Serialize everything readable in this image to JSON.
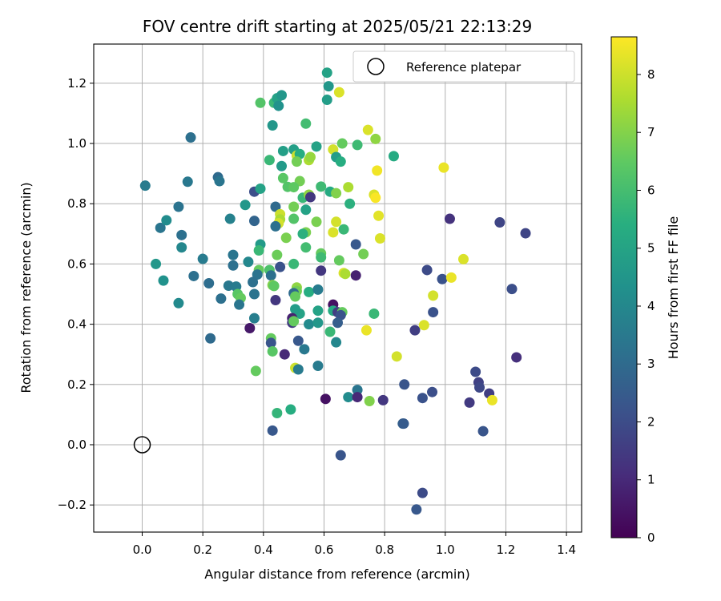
{
  "chart_data": {
    "type": "scatter",
    "title": "FOV centre drift starting at 2025/05/21 22:13:29",
    "xlabel": "Angular distance from reference (arcmin)",
    "ylabel": "Rotation from reference (arcmin)",
    "xlim": [
      -0.16,
      1.45
    ],
    "ylim": [
      -0.29,
      1.33
    ],
    "xticks": [
      0.0,
      0.2,
      0.4,
      0.6,
      0.8,
      1.0,
      1.2,
      1.4
    ],
    "yticks": [
      -0.2,
      0.0,
      0.2,
      0.4,
      0.6,
      0.8,
      1.0,
      1.2
    ],
    "grid": true,
    "legend": {
      "label": "Reference platepar",
      "placement": "top-right"
    },
    "reference_point": {
      "x": 0.0,
      "y": 0.0
    },
    "colorbar": {
      "label": "Hours from first FF file",
      "range": [
        0,
        8.65
      ],
      "ticks": [
        0,
        1,
        2,
        3,
        4,
        5,
        6,
        7,
        8
      ],
      "colormap": "viridis"
    },
    "points": [
      {
        "x": 0.01,
        "y": 0.86,
        "c": 3.6
      },
      {
        "x": 0.16,
        "y": 1.02,
        "c": 3.2
      },
      {
        "x": 0.06,
        "y": 0.72,
        "c": 3.4
      },
      {
        "x": 0.08,
        "y": 0.745,
        "c": 4.2
      },
      {
        "x": 0.12,
        "y": 0.79,
        "c": 3.3
      },
      {
        "x": 0.15,
        "y": 0.873,
        "c": 3.5
      },
      {
        "x": 0.25,
        "y": 0.888,
        "c": 3.0
      },
      {
        "x": 0.255,
        "y": 0.875,
        "c": 3.4
      },
      {
        "x": 0.13,
        "y": 0.696,
        "c": 3.2
      },
      {
        "x": 0.13,
        "y": 0.655,
        "c": 4.0
      },
      {
        "x": 0.045,
        "y": 0.6,
        "c": 4.6
      },
      {
        "x": 0.07,
        "y": 0.545,
        "c": 4.4
      },
      {
        "x": 0.2,
        "y": 0.617,
        "c": 3.6
      },
      {
        "x": 0.17,
        "y": 0.56,
        "c": 3.2
      },
      {
        "x": 0.12,
        "y": 0.47,
        "c": 4.1
      },
      {
        "x": 0.22,
        "y": 0.536,
        "c": 3.1
      },
      {
        "x": 0.26,
        "y": 0.485,
        "c": 3.2
      },
      {
        "x": 0.225,
        "y": 0.353,
        "c": 3.0
      },
      {
        "x": 0.29,
        "y": 0.75,
        "c": 3.8
      },
      {
        "x": 0.34,
        "y": 0.796,
        "c": 4.6
      },
      {
        "x": 0.3,
        "y": 0.63,
        "c": 3.4
      },
      {
        "x": 0.3,
        "y": 0.595,
        "c": 3.2
      },
      {
        "x": 0.35,
        "y": 0.607,
        "c": 4.0
      },
      {
        "x": 0.285,
        "y": 0.528,
        "c": 3.5
      },
      {
        "x": 0.31,
        "y": 0.525,
        "c": 3.6
      },
      {
        "x": 0.315,
        "y": 0.5,
        "c": 6.4
      },
      {
        "x": 0.325,
        "y": 0.487,
        "c": 6.6
      },
      {
        "x": 0.32,
        "y": 0.465,
        "c": 3.4
      },
      {
        "x": 0.37,
        "y": 0.84,
        "c": 2.1
      },
      {
        "x": 0.37,
        "y": 0.743,
        "c": 2.8
      },
      {
        "x": 0.39,
        "y": 0.85,
        "c": 5.0
      },
      {
        "x": 0.39,
        "y": 0.665,
        "c": 4.7
      },
      {
        "x": 0.385,
        "y": 0.645,
        "c": 5.8
      },
      {
        "x": 0.385,
        "y": 0.58,
        "c": 6.6
      },
      {
        "x": 0.38,
        "y": 0.565,
        "c": 3.3
      },
      {
        "x": 0.365,
        "y": 0.54,
        "c": 3.2
      },
      {
        "x": 0.37,
        "y": 0.5,
        "c": 3.3
      },
      {
        "x": 0.37,
        "y": 0.42,
        "c": 3.7
      },
      {
        "x": 0.355,
        "y": 0.387,
        "c": 0.6
      },
      {
        "x": 0.375,
        "y": 0.245,
        "c": 6.6
      },
      {
        "x": 0.39,
        "y": 1.135,
        "c": 6.3
      },
      {
        "x": 0.435,
        "y": 1.135,
        "c": 5.8
      },
      {
        "x": 0.445,
        "y": 1.15,
        "c": 5.0
      },
      {
        "x": 0.46,
        "y": 1.16,
        "c": 4.6
      },
      {
        "x": 0.45,
        "y": 1.125,
        "c": 4.4
      },
      {
        "x": 0.43,
        "y": 1.06,
        "c": 4.6
      },
      {
        "x": 0.42,
        "y": 0.945,
        "c": 5.8
      },
      {
        "x": 0.465,
        "y": 0.975,
        "c": 4.9
      },
      {
        "x": 0.46,
        "y": 0.925,
        "c": 4.7
      },
      {
        "x": 0.465,
        "y": 0.885,
        "c": 6.4
      },
      {
        "x": 0.48,
        "y": 0.856,
        "c": 6.3
      },
      {
        "x": 0.44,
        "y": 0.79,
        "c": 3.0
      },
      {
        "x": 0.455,
        "y": 0.765,
        "c": 8.0
      },
      {
        "x": 0.455,
        "y": 0.748,
        "c": 7.6
      },
      {
        "x": 0.45,
        "y": 0.735,
        "c": 8.1
      },
      {
        "x": 0.44,
        "y": 0.725,
        "c": 3.2
      },
      {
        "x": 0.475,
        "y": 0.687,
        "c": 6.9
      },
      {
        "x": 0.445,
        "y": 0.63,
        "c": 6.7
      },
      {
        "x": 0.455,
        "y": 0.59,
        "c": 2.2
      },
      {
        "x": 0.42,
        "y": 0.58,
        "c": 6.2
      },
      {
        "x": 0.425,
        "y": 0.562,
        "c": 3.2
      },
      {
        "x": 0.43,
        "y": 0.53,
        "c": 7.0
      },
      {
        "x": 0.435,
        "y": 0.527,
        "c": 6.5
      },
      {
        "x": 0.44,
        "y": 0.48,
        "c": 1.4
      },
      {
        "x": 0.425,
        "y": 0.353,
        "c": 6.6
      },
      {
        "x": 0.425,
        "y": 0.338,
        "c": 2.3
      },
      {
        "x": 0.43,
        "y": 0.31,
        "c": 6.4
      },
      {
        "x": 0.47,
        "y": 0.3,
        "c": 1.0
      },
      {
        "x": 0.445,
        "y": 0.105,
        "c": 5.7
      },
      {
        "x": 0.43,
        "y": 0.047,
        "c": 2.4
      },
      {
        "x": 0.49,
        "y": 0.117,
        "c": 5.4
      },
      {
        "x": 0.5,
        "y": 0.98,
        "c": 4.9
      },
      {
        "x": 0.51,
        "y": 0.96,
        "c": 8.0
      },
      {
        "x": 0.52,
        "y": 0.965,
        "c": 5.4
      },
      {
        "x": 0.51,
        "y": 0.94,
        "c": 6.8
      },
      {
        "x": 0.55,
        "y": 0.945,
        "c": 7.6
      },
      {
        "x": 0.555,
        "y": 0.955,
        "c": 7.3
      },
      {
        "x": 0.54,
        "y": 1.066,
        "c": 6.0
      },
      {
        "x": 0.575,
        "y": 0.99,
        "c": 5.0
      },
      {
        "x": 0.52,
        "y": 0.875,
        "c": 6.8
      },
      {
        "x": 0.5,
        "y": 0.855,
        "c": 6.5
      },
      {
        "x": 0.53,
        "y": 0.82,
        "c": 5.8
      },
      {
        "x": 0.55,
        "y": 0.83,
        "c": 7.2
      },
      {
        "x": 0.555,
        "y": 0.822,
        "c": 1.4
      },
      {
        "x": 0.59,
        "y": 0.857,
        "c": 5.9
      },
      {
        "x": 0.61,
        "y": 1.235,
        "c": 5.0
      },
      {
        "x": 0.615,
        "y": 1.19,
        "c": 4.6
      },
      {
        "x": 0.61,
        "y": 1.145,
        "c": 4.8
      },
      {
        "x": 0.65,
        "y": 1.17,
        "c": 8.2
      },
      {
        "x": 0.5,
        "y": 0.79,
        "c": 6.8
      },
      {
        "x": 0.5,
        "y": 0.75,
        "c": 6.3
      },
      {
        "x": 0.54,
        "y": 0.78,
        "c": 5.0
      },
      {
        "x": 0.575,
        "y": 0.74,
        "c": 6.9
      },
      {
        "x": 0.54,
        "y": 0.705,
        "c": 6.9
      },
      {
        "x": 0.53,
        "y": 0.7,
        "c": 5.5
      },
      {
        "x": 0.54,
        "y": 0.655,
        "c": 6.0
      },
      {
        "x": 0.5,
        "y": 0.6,
        "c": 5.8
      },
      {
        "x": 0.59,
        "y": 0.635,
        "c": 6.6
      },
      {
        "x": 0.59,
        "y": 0.622,
        "c": 5.9
      },
      {
        "x": 0.59,
        "y": 0.578,
        "c": 1.4
      },
      {
        "x": 0.51,
        "y": 0.522,
        "c": 7.2
      },
      {
        "x": 0.51,
        "y": 0.51,
        "c": 6.8
      },
      {
        "x": 0.5,
        "y": 0.503,
        "c": 3.0
      },
      {
        "x": 0.505,
        "y": 0.492,
        "c": 6.6
      },
      {
        "x": 0.55,
        "y": 0.507,
        "c": 5.4
      },
      {
        "x": 0.58,
        "y": 0.515,
        "c": 3.6
      },
      {
        "x": 0.52,
        "y": 0.435,
        "c": 5.0
      },
      {
        "x": 0.505,
        "y": 0.45,
        "c": 4.8
      },
      {
        "x": 0.495,
        "y": 0.42,
        "c": 0.8
      },
      {
        "x": 0.495,
        "y": 0.405,
        "c": 1.5
      },
      {
        "x": 0.5,
        "y": 0.41,
        "c": 6.6
      },
      {
        "x": 0.55,
        "y": 0.4,
        "c": 4.1
      },
      {
        "x": 0.58,
        "y": 0.405,
        "c": 4.6
      },
      {
        "x": 0.58,
        "y": 0.445,
        "c": 5.0
      },
      {
        "x": 0.515,
        "y": 0.345,
        "c": 2.4
      },
      {
        "x": 0.535,
        "y": 0.317,
        "c": 3.5
      },
      {
        "x": 0.505,
        "y": 0.255,
        "c": 8.0
      },
      {
        "x": 0.515,
        "y": 0.25,
        "c": 3.6
      },
      {
        "x": 0.58,
        "y": 0.262,
        "c": 3.6
      },
      {
        "x": 0.605,
        "y": 0.152,
        "c": 0.4
      },
      {
        "x": 0.63,
        "y": 0.98,
        "c": 8.1
      },
      {
        "x": 0.64,
        "y": 0.955,
        "c": 4.8
      },
      {
        "x": 0.655,
        "y": 0.94,
        "c": 5.4
      },
      {
        "x": 0.66,
        "y": 1.0,
        "c": 6.6
      },
      {
        "x": 0.71,
        "y": 0.995,
        "c": 5.9
      },
      {
        "x": 0.62,
        "y": 0.84,
        "c": 5.3
      },
      {
        "x": 0.64,
        "y": 0.835,
        "c": 7.0
      },
      {
        "x": 0.68,
        "y": 0.855,
        "c": 7.6
      },
      {
        "x": 0.685,
        "y": 0.8,
        "c": 5.5
      },
      {
        "x": 0.64,
        "y": 0.74,
        "c": 8.1
      },
      {
        "x": 0.63,
        "y": 0.705,
        "c": 8.2
      },
      {
        "x": 0.665,
        "y": 0.715,
        "c": 5.8
      },
      {
        "x": 0.705,
        "y": 0.665,
        "c": 2.4
      },
      {
        "x": 0.65,
        "y": 0.612,
        "c": 6.6
      },
      {
        "x": 0.73,
        "y": 0.633,
        "c": 6.8
      },
      {
        "x": 0.665,
        "y": 0.57,
        "c": 8.2
      },
      {
        "x": 0.67,
        "y": 0.567,
        "c": 7.6
      },
      {
        "x": 0.705,
        "y": 0.562,
        "c": 0.8
      },
      {
        "x": 0.63,
        "y": 0.465,
        "c": 0.4
      },
      {
        "x": 0.63,
        "y": 0.445,
        "c": 5.3
      },
      {
        "x": 0.645,
        "y": 0.44,
        "c": 1.6
      },
      {
        "x": 0.66,
        "y": 0.44,
        "c": 6.6
      },
      {
        "x": 0.655,
        "y": 0.43,
        "c": 2.2
      },
      {
        "x": 0.645,
        "y": 0.405,
        "c": 2.6
      },
      {
        "x": 0.62,
        "y": 0.375,
        "c": 5.8
      },
      {
        "x": 0.64,
        "y": 0.34,
        "c": 4.0
      },
      {
        "x": 0.74,
        "y": 0.38,
        "c": 8.4
      },
      {
        "x": 0.68,
        "y": 0.158,
        "c": 4.2
      },
      {
        "x": 0.71,
        "y": 0.182,
        "c": 3.4
      },
      {
        "x": 0.71,
        "y": 0.158,
        "c": 1.0
      },
      {
        "x": 0.75,
        "y": 0.145,
        "c": 7.0
      },
      {
        "x": 0.655,
        "y": -0.035,
        "c": 2.3
      },
      {
        "x": 0.745,
        "y": 1.045,
        "c": 8.2
      },
      {
        "x": 0.77,
        "y": 1.015,
        "c": 7.2
      },
      {
        "x": 0.83,
        "y": 0.958,
        "c": 5.3
      },
      {
        "x": 0.775,
        "y": 0.91,
        "c": 8.5
      },
      {
        "x": 0.765,
        "y": 0.83,
        "c": 8.2
      },
      {
        "x": 0.77,
        "y": 0.82,
        "c": 8.6
      },
      {
        "x": 0.78,
        "y": 0.76,
        "c": 8.3
      },
      {
        "x": 0.785,
        "y": 0.685,
        "c": 8.2
      },
      {
        "x": 0.765,
        "y": 0.435,
        "c": 5.8
      },
      {
        "x": 0.795,
        "y": 0.148,
        "c": 1.4
      },
      {
        "x": 0.84,
        "y": 0.293,
        "c": 8.1
      },
      {
        "x": 0.865,
        "y": 0.2,
        "c": 2.3
      },
      {
        "x": 0.86,
        "y": 0.07,
        "c": 2.7
      },
      {
        "x": 0.863,
        "y": 0.07,
        "c": 2.5
      },
      {
        "x": 0.9,
        "y": 0.38,
        "c": 1.6
      },
      {
        "x": 0.93,
        "y": 0.397,
        "c": 8.2
      },
      {
        "x": 0.925,
        "y": 0.155,
        "c": 2.2
      },
      {
        "x": 0.905,
        "y": -0.215,
        "c": 2.4
      },
      {
        "x": 0.925,
        "y": -0.16,
        "c": 2.0
      },
      {
        "x": 0.94,
        "y": 0.58,
        "c": 2.0
      },
      {
        "x": 0.96,
        "y": 0.495,
        "c": 8.1
      },
      {
        "x": 0.96,
        "y": 0.44,
        "c": 2.2
      },
      {
        "x": 0.957,
        "y": 0.175,
        "c": 2.1
      },
      {
        "x": 0.99,
        "y": 0.55,
        "c": 2.2
      },
      {
        "x": 0.995,
        "y": 0.92,
        "c": 8.4
      },
      {
        "x": 1.015,
        "y": 0.75,
        "c": 1.3
      },
      {
        "x": 1.02,
        "y": 0.555,
        "c": 8.4
      },
      {
        "x": 1.06,
        "y": 0.616,
        "c": 8.2
      },
      {
        "x": 1.08,
        "y": 0.14,
        "c": 1.5
      },
      {
        "x": 1.1,
        "y": 0.242,
        "c": 2.0
      },
      {
        "x": 1.11,
        "y": 0.207,
        "c": 1.7
      },
      {
        "x": 1.113,
        "y": 0.19,
        "c": 1.9
      },
      {
        "x": 1.125,
        "y": 0.045,
        "c": 2.3
      },
      {
        "x": 1.145,
        "y": 0.17,
        "c": 1.6
      },
      {
        "x": 1.155,
        "y": 0.148,
        "c": 8.4
      },
      {
        "x": 1.18,
        "y": 0.738,
        "c": 1.8
      },
      {
        "x": 1.22,
        "y": 0.517,
        "c": 2.1
      },
      {
        "x": 1.235,
        "y": 0.29,
        "c": 1.2
      },
      {
        "x": 1.265,
        "y": 0.702,
        "c": 1.8
      }
    ]
  }
}
